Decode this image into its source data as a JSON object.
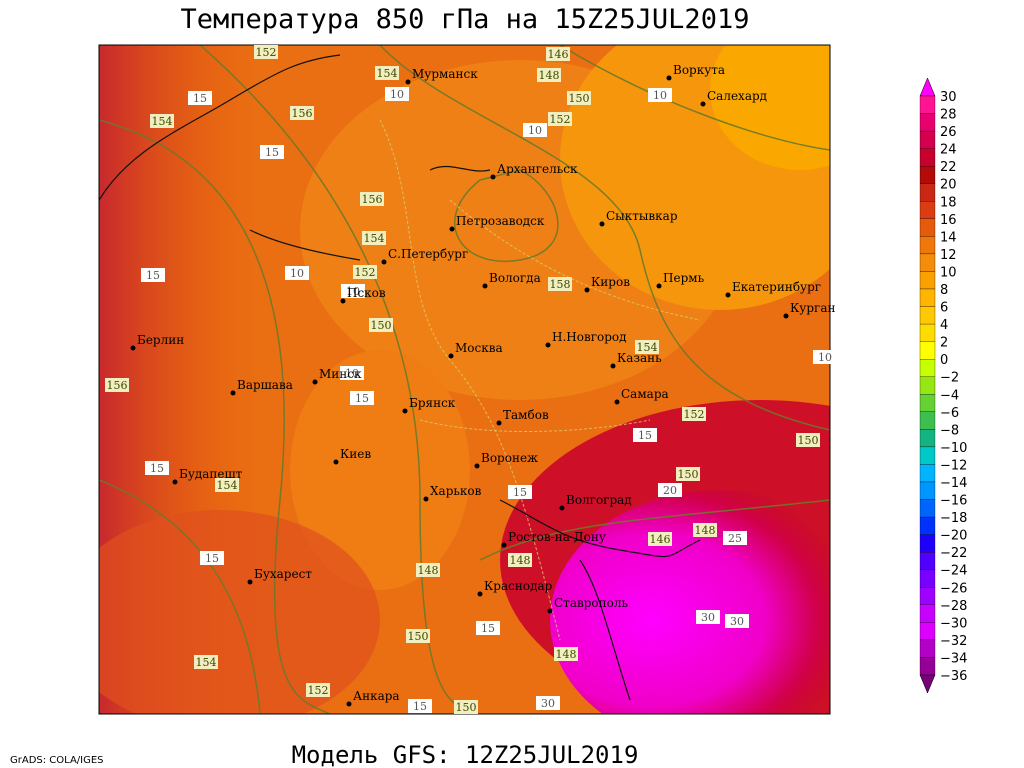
{
  "title": "Температура 850 гПа на 15Z25JUL2019",
  "subtitle": "Модель GFS: 12Z25JUL2019",
  "credit": "GrADS: COLA/IGES",
  "cities": [
    "Мурманск",
    "Воркута",
    "Салехард",
    "Архангельск",
    "Петрозаводск",
    "Сыктывкар",
    "С.Петербург",
    "Вологда",
    "Киров",
    "Пермь",
    "Екатеринбург",
    "Курган",
    "Псков",
    "Берлин",
    "Н.Новгород",
    "Москва",
    "Казань",
    "Варшава",
    "Минск",
    "Брянск",
    "Самара",
    "Тамбов",
    "Воронеж",
    "Киев",
    "Будапешт",
    "Харьков",
    "Волгоград",
    "Ростов-на-Дону",
    "Бухарест",
    "Краснодар",
    "Ставрополь",
    "Анкара"
  ],
  "height_labels": [
    "152",
    "146",
    "154",
    "148",
    "150",
    "156",
    "154",
    "152",
    "156",
    "154",
    "152",
    "158",
    "150",
    "154",
    "156",
    "152",
    "150",
    "154",
    "150",
    "148",
    "146",
    "148",
    "148",
    "150",
    "148",
    "154",
    "152",
    "150"
  ],
  "temperature_labels": [
    "10",
    "10",
    "15",
    "10",
    "15",
    "10",
    "15",
    "10",
    "10",
    "15",
    "10",
    "15",
    "15",
    "20",
    "15",
    "25",
    "15",
    "30",
    "30",
    "15",
    "15",
    "30"
  ],
  "colorbar": {
    "labels": [
      "30",
      "28",
      "26",
      "24",
      "22",
      "20",
      "18",
      "16",
      "14",
      "12",
      "10",
      "8",
      "6",
      "4",
      "2",
      "0",
      "−2",
      "−4",
      "−6",
      "−8",
      "−10",
      "−12",
      "−14",
      "−16",
      "−18",
      "−20",
      "−22",
      "−24",
      "−26",
      "−28",
      "−30",
      "−32",
      "−34",
      "−36"
    ],
    "colors": [
      "#ff00ff",
      "#ff1493",
      "#e8006e",
      "#d2004e",
      "#c8002d",
      "#b40a0a",
      "#c82814",
      "#dc3c14",
      "#e65a0a",
      "#f0780a",
      "#f58c0a",
      "#faa000",
      "#ffb400",
      "#ffc800",
      "#ffdc00",
      "#ffff00",
      "#c8ff00",
      "#96e614",
      "#64d232",
      "#3cbe50",
      "#14b482",
      "#00c8c8",
      "#00b4ff",
      "#0096ff",
      "#0064ff",
      "#0032ff",
      "#1e00ff",
      "#5000ff",
      "#7800ff",
      "#a000ff",
      "#c800ff",
      "#dc00ff",
      "#b400c8",
      "#960096",
      "#780078"
    ]
  }
}
